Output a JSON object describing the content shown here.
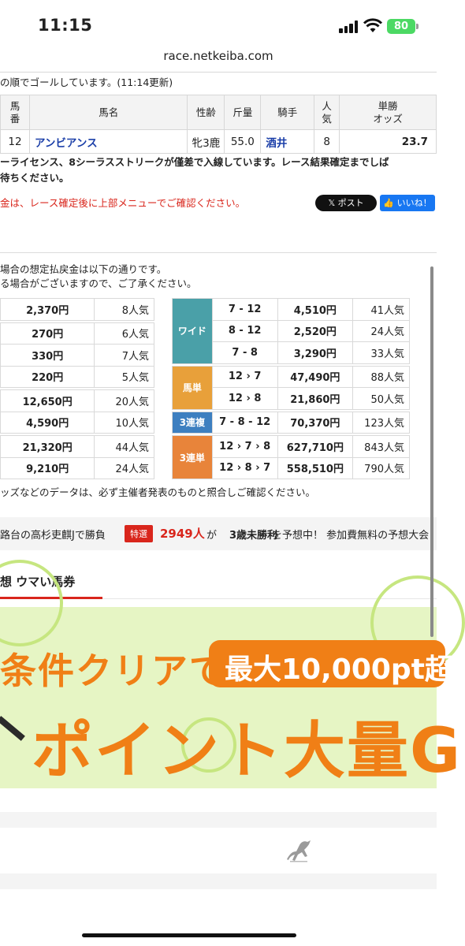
{
  "status_bar": {
    "time": "11:15",
    "battery": "80"
  },
  "browser": {
    "url": "race.netkeiba.com"
  },
  "goal_note": "の順でゴールしています。(11:14更新)",
  "result_table": {
    "headers": [
      "馬番",
      "馬名",
      "性齢",
      "斤量",
      "騎手",
      "人気",
      "単勝オッズ"
    ],
    "header_lines": [
      [
        "馬",
        "番"
      ],
      [
        "馬名"
      ],
      [
        "性齢"
      ],
      [
        "斤量"
      ],
      [
        "騎手"
      ],
      [
        "人",
        "気"
      ],
      [
        "単勝",
        "オッズ"
      ]
    ],
    "row": {
      "num": "12",
      "name": "アンビアンス",
      "sex_age": "牝3鹿",
      "weight": "55.0",
      "jockey": "酒井",
      "pop": "8",
      "odds": "23.7"
    }
  },
  "win_note_line1": "ーライセンス、8シーラスストリークが僅差で入線しています。レース結果確定までしば",
  "win_note_line2": "待ちください。",
  "red_note": "金は、レース確定後に上部メニューでご確認ください。",
  "share": {
    "post": "ポスト",
    "like": "いいね！"
  },
  "payout_intro_1": "場合の想定払戻金は以下の通りです。",
  "payout_intro_2": "る場合がございますので、ご了承ください。",
  "left_payouts": [
    {
      "amount": "2,370円",
      "pop": "8人気"
    },
    {
      "amount": "270円",
      "pop": "6人気"
    },
    {
      "amount": "330円",
      "pop": "7人気"
    },
    {
      "amount": "220円",
      "pop": "5人気"
    },
    {
      "amount": "12,650円",
      "pop": "20人気"
    },
    {
      "amount": "4,590円",
      "pop": "10人気"
    },
    {
      "amount": "21,320円",
      "pop": "44人気"
    },
    {
      "amount": "9,210円",
      "pop": "24人気"
    }
  ],
  "right_payouts": {
    "wide": {
      "label": "ワイド",
      "color": "#4aa0a8",
      "rows": [
        {
          "combo": "7 - 12",
          "amount": "4,510円",
          "pop": "41人気"
        },
        {
          "combo": "8 - 12",
          "amount": "2,520円",
          "pop": "24人気"
        },
        {
          "combo": "7 - 8",
          "amount": "3,290円",
          "pop": "33人気"
        }
      ]
    },
    "umatan": {
      "label": "馬単",
      "color": "#e8a03a",
      "rows": [
        {
          "combo": "12 › 7",
          "amount": "47,490円",
          "pop": "88人気"
        },
        {
          "combo": "12 › 8",
          "amount": "21,860円",
          "pop": "50人気"
        }
      ]
    },
    "sanrenpuku": {
      "label": "3連複",
      "color": "#3d7fc0",
      "rows": [
        {
          "combo": "7 - 8 - 12",
          "amount": "70,370円",
          "pop": "123人気"
        }
      ]
    },
    "sanrentan": {
      "label": "3連単",
      "color": "#e8843a",
      "rows": [
        {
          "combo": "12 › 7 › 8",
          "amount": "627,710円",
          "pop": "843人気"
        },
        {
          "combo": "12 › 8 › 7",
          "amount": "558,510円",
          "pop": "790人気"
        }
      ]
    }
  },
  "payout_caution": "ッズなどのデータは、必ず主催者発表のものと照合しご確認ください。",
  "ticker": {
    "text1": "路台の高杉吏麒Jで勝負",
    "badge": "特選",
    "count": "2949人",
    "text2": "が",
    "text3": "3歳未勝利",
    "text4": "を予想中！ 参加費無料の予想大会"
  },
  "section_title": "想 ウマい馬券",
  "banner": {
    "line1": "条件クリアで",
    "pill": "最大10,000pt超",
    "line2": "ポイント大量G"
  }
}
